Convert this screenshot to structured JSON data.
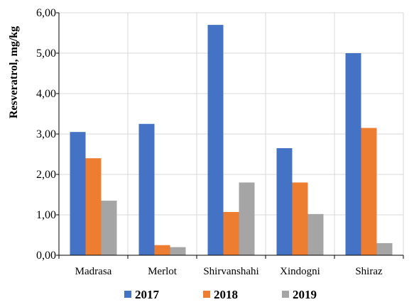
{
  "chart_data": {
    "type": "bar",
    "categories": [
      "Madrasa",
      "Merlot",
      "Shirvanshahi",
      "Xindogni",
      "Shiraz"
    ],
    "series": [
      {
        "name": "2017",
        "color": "#4472C4",
        "values": [
          3.05,
          3.25,
          5.7,
          2.65,
          5.0
        ]
      },
      {
        "name": "2018",
        "color": "#ED7D31",
        "values": [
          2.4,
          0.25,
          1.07,
          1.8,
          3.15
        ]
      },
      {
        "name": "2019",
        "color": "#A5A5A5",
        "values": [
          1.35,
          0.2,
          1.8,
          1.02,
          0.3
        ]
      }
    ],
    "ylabel": "Resveratrol, mg/kg",
    "xlabel": "",
    "ylim": [
      0,
      6
    ],
    "yticks": [
      "0,00",
      "1,00",
      "2,00",
      "3,00",
      "4,00",
      "5,00",
      "6,00"
    ],
    "grid": true,
    "legend_position": "bottom"
  }
}
